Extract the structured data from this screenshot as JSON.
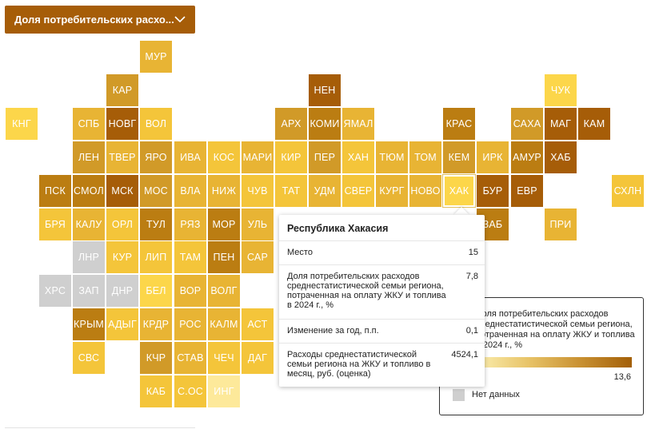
{
  "dropdown": {
    "label": "Доля потребительских расхо..."
  },
  "palette": {
    "c1": "#fcd64a",
    "c2": "#f4c53a",
    "c3": "#e8b434",
    "c4": "#d19a28",
    "c5": "#bb7d12",
    "c6": "#a65d08",
    "nodata": "#cfcfcf",
    "pale": "#fde99a"
  },
  "tiles": [
    {
      "label": "МУР",
      "shade": "c3"
    },
    {
      "label": "КАР",
      "shade": "c4"
    },
    {
      "label": "НЕН",
      "shade": "c6"
    },
    {
      "label": "ЧУК",
      "shade": "c1"
    },
    {
      "label": "КНГ",
      "shade": "c1"
    },
    {
      "label": "СПБ",
      "shade": "c3"
    },
    {
      "label": "НОВГ",
      "shade": "c6"
    },
    {
      "label": "ВОЛ",
      "shade": "c2"
    },
    {
      "label": "АРХ",
      "shade": "c4"
    },
    {
      "label": "КОМИ",
      "shade": "c5"
    },
    {
      "label": "ЯМАЛ",
      "shade": "c3"
    },
    {
      "label": "КРАС",
      "shade": "c5"
    },
    {
      "label": "САХА",
      "shade": "c4"
    },
    {
      "label": "МАГ",
      "shade": "c6"
    },
    {
      "label": "КАМ",
      "shade": "c6"
    },
    {
      "label": "ЛЕН",
      "shade": "c4"
    },
    {
      "label": "ТВЕР",
      "shade": "c3"
    },
    {
      "label": "ЯРО",
      "shade": "c4"
    },
    {
      "label": "ИВА",
      "shade": "c3"
    },
    {
      "label": "КОС",
      "shade": "c2"
    },
    {
      "label": "МАРИ",
      "shade": "c3"
    },
    {
      "label": "КИР",
      "shade": "c2"
    },
    {
      "label": "ПЕР",
      "shade": "c4"
    },
    {
      "label": "ХАН",
      "shade": "c2"
    },
    {
      "label": "ТЮМ",
      "shade": "c3"
    },
    {
      "label": "ТОМ",
      "shade": "c3"
    },
    {
      "label": "КЕМ",
      "shade": "c4"
    },
    {
      "label": "ИРК",
      "shade": "c3"
    },
    {
      "label": "АМУР",
      "shade": "c5"
    },
    {
      "label": "ХАБ",
      "shade": "c6"
    },
    {
      "label": "ПСК",
      "shade": "c5"
    },
    {
      "label": "СМОЛ",
      "shade": "c5"
    },
    {
      "label": "МСК",
      "shade": "c6"
    },
    {
      "label": "МОС",
      "shade": "c4"
    },
    {
      "label": "ВЛА",
      "shade": "c3"
    },
    {
      "label": "НИЖ",
      "shade": "c3"
    },
    {
      "label": "ЧУВ",
      "shade": "c2"
    },
    {
      "label": "ТАТ",
      "shade": "c2"
    },
    {
      "label": "УДМ",
      "shade": "c3"
    },
    {
      "label": "СВЕР",
      "shade": "c2"
    },
    {
      "label": "КУРГ",
      "shade": "c3"
    },
    {
      "label": "НОВО",
      "shade": "c3"
    },
    {
      "label": "ХАК",
      "shade": "c1"
    },
    {
      "label": "БУР",
      "shade": "c6"
    },
    {
      "label": "ЕВР",
      "shade": "c6"
    },
    {
      "label": "СХЛН",
      "shade": "c2"
    },
    {
      "label": "БРЯ",
      "shade": "c2"
    },
    {
      "label": "КАЛУ",
      "shade": "c3"
    },
    {
      "label": "ОРЛ",
      "shade": "c2"
    },
    {
      "label": "ТУЛ",
      "shade": "c5"
    },
    {
      "label": "РЯЗ",
      "shade": "c3"
    },
    {
      "label": "МОР",
      "shade": "c5"
    },
    {
      "label": "УЛЬ",
      "shade": "c3"
    },
    {
      "label": "ЗАБ",
      "shade": "c5"
    },
    {
      "label": "ПРИ",
      "shade": "c3"
    },
    {
      "label": "ЛНР",
      "shade": "nodata"
    },
    {
      "label": "КУР",
      "shade": "c2"
    },
    {
      "label": "ЛИП",
      "shade": "c2"
    },
    {
      "label": "ТАМ",
      "shade": "c2"
    },
    {
      "label": "ПЕН",
      "shade": "c5"
    },
    {
      "label": "САР",
      "shade": "c3"
    },
    {
      "label": "ХРС",
      "shade": "nodata"
    },
    {
      "label": "ЗАП",
      "shade": "nodata"
    },
    {
      "label": "ДНР",
      "shade": "nodata"
    },
    {
      "label": "БЕЛ",
      "shade": "c1"
    },
    {
      "label": "ВОР",
      "shade": "c3"
    },
    {
      "label": "ВОЛГ",
      "shade": "c3"
    },
    {
      "label": "КРЫМ",
      "shade": "c5"
    },
    {
      "label": "АДЫГ",
      "shade": "c2"
    },
    {
      "label": "КРДР",
      "shade": "c3"
    },
    {
      "label": "РОС",
      "shade": "c3"
    },
    {
      "label": "КАЛМ",
      "shade": "c3"
    },
    {
      "label": "АСТ",
      "shade": "c2"
    },
    {
      "label": "СВС",
      "shade": "c2"
    },
    {
      "label": "КЧР",
      "shade": "c4"
    },
    {
      "label": "СТАВ",
      "shade": "c3"
    },
    {
      "label": "ЧЕЧ",
      "shade": "c2"
    },
    {
      "label": "ДАГ",
      "shade": "c2"
    },
    {
      "label": "КАБ",
      "shade": "c2"
    },
    {
      "label": "С.ОС",
      "shade": "c2"
    },
    {
      "label": "ИНГ",
      "shade": "pale"
    }
  ],
  "legend": {
    "title": "Доля потребительских расходов среднестатистической семьи региона, потраченная на оплату ЖКУ и топлива в 2024 г., %",
    "max_value": "13,6",
    "nodata_label": "Нет данных"
  },
  "tooltip": {
    "title": "Республика Хакасия",
    "rows": [
      {
        "label": "Место",
        "value": "15"
      },
      {
        "label": "Доля потребительских расходов среднестатистической семьи региона, потраченная на оплату ЖКУ и топлива в 2024 г., %",
        "value": "7,8"
      },
      {
        "label": "Изменение за год, п.п.",
        "value": "0,1"
      },
      {
        "label": "Расходы среднестатистической семьи региона на ЖКУ и топливо в месяц, руб. (оценка)",
        "value": "4524,1"
      }
    ]
  }
}
